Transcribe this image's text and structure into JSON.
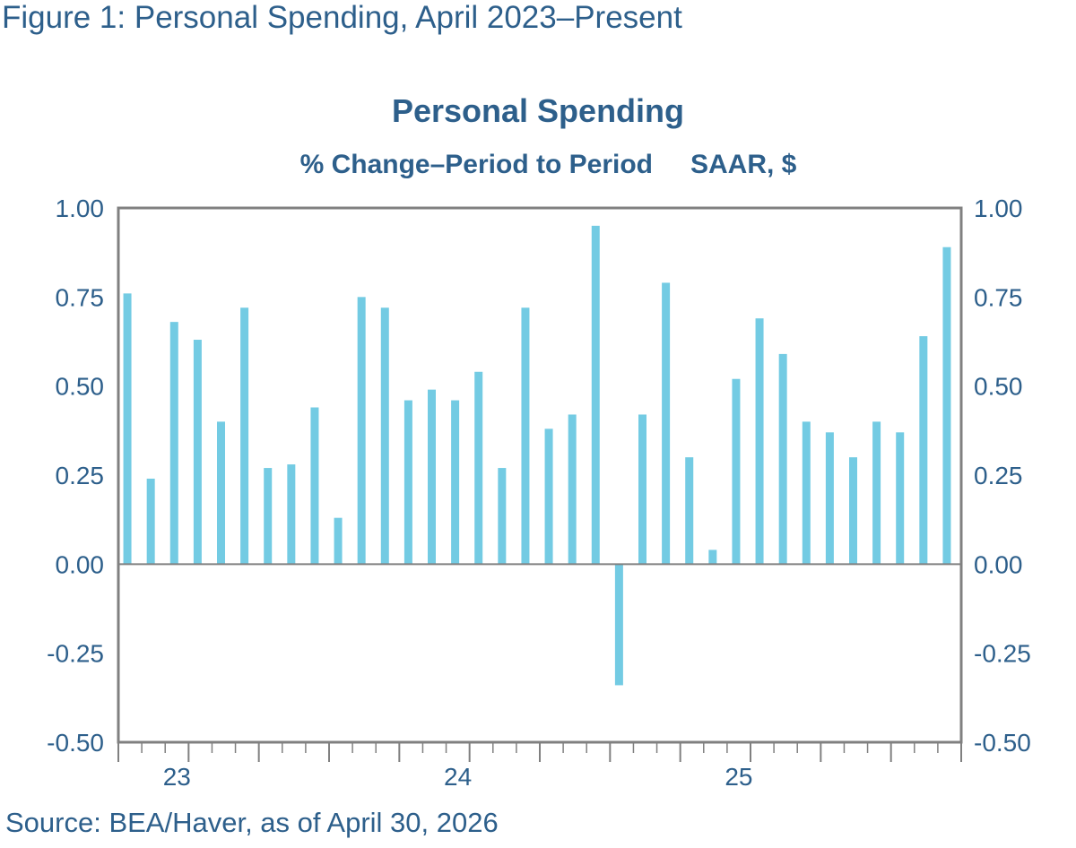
{
  "figure_title": "Figure 1: Personal Spending, April 2023–Present",
  "source": "Source: BEA/Haver, as of April 30, 2026",
  "colors": {
    "bar": "#73cbe3",
    "frame": "#808080",
    "text": "#2d5f8b"
  },
  "chart_data": {
    "type": "bar",
    "title": "Personal Spending",
    "subtitle_left": "% Change–Period to Period",
    "subtitle_right": "SAAR, $",
    "xlabel": "",
    "ylabel": "",
    "ylim": [
      -0.5,
      1.0
    ],
    "yticks": [
      "1.00",
      "0.75",
      "0.50",
      "0.25",
      "0.00",
      "-0.25",
      "-0.50"
    ],
    "ytick_values": [
      1.0,
      0.75,
      0.5,
      0.25,
      0.0,
      -0.25,
      -0.5
    ],
    "grid": false,
    "dual_axis": true,
    "x_year_labels": [
      {
        "label": "23",
        "index": 2.5
      },
      {
        "label": "24",
        "index": 14.5
      },
      {
        "label": "25",
        "index": 26.5
      }
    ],
    "categories": [
      "2023-04",
      "2023-05",
      "2023-06",
      "2023-07",
      "2023-08",
      "2023-09",
      "2023-10",
      "2023-11",
      "2023-12",
      "2024-01",
      "2024-02",
      "2024-03",
      "2024-04",
      "2024-05",
      "2024-06",
      "2024-07",
      "2024-08",
      "2024-09",
      "2024-10",
      "2024-11",
      "2024-12",
      "2025-01",
      "2025-02",
      "2025-03",
      "2025-04",
      "2025-05",
      "2025-06",
      "2025-07",
      "2025-08",
      "2025-09",
      "2025-10",
      "2025-11",
      "2025-12",
      "2026-01",
      "2026-02",
      "2026-03"
    ],
    "values": [
      0.76,
      0.24,
      0.68,
      0.63,
      0.4,
      0.72,
      0.27,
      0.28,
      0.44,
      0.13,
      0.75,
      0.72,
      0.46,
      0.49,
      0.46,
      0.54,
      0.27,
      0.72,
      0.38,
      0.42,
      0.95,
      -0.34,
      0.42,
      0.79,
      0.3,
      0.04,
      0.52,
      0.69,
      0.59,
      0.4,
      0.37,
      0.3,
      0.4,
      0.37,
      0.64,
      0.89
    ]
  }
}
